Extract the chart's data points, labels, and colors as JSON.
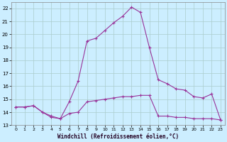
{
  "xlabel": "Windchill (Refroidissement éolien,°C)",
  "bg_color": "#cceeff",
  "grid_color": "#aacccc",
  "line_color": "#993399",
  "xlim": [
    -0.5,
    23.5
  ],
  "ylim": [
    13,
    22.5
  ],
  "yticks": [
    13,
    14,
    15,
    16,
    17,
    18,
    19,
    20,
    21,
    22
  ],
  "xticks": [
    0,
    1,
    2,
    3,
    4,
    5,
    6,
    7,
    8,
    9,
    10,
    11,
    12,
    13,
    14,
    15,
    16,
    17,
    18,
    19,
    20,
    21,
    22,
    23
  ],
  "series1_x": [
    0,
    1,
    2,
    3,
    4,
    5,
    6,
    7,
    8,
    9,
    10,
    11,
    12,
    13,
    14,
    15,
    16,
    17,
    18,
    19,
    20,
    21,
    22,
    23
  ],
  "series1_y": [
    14.4,
    14.4,
    14.5,
    14.0,
    13.7,
    13.5,
    14.8,
    16.4,
    19.5,
    19.7,
    20.3,
    20.9,
    21.4,
    22.1,
    21.7,
    19.0,
    16.5,
    16.2,
    15.8,
    15.7,
    15.2,
    15.1,
    15.4,
    13.4
  ],
  "series2_x": [
    0,
    1,
    2,
    3,
    4,
    5,
    6,
    7,
    8,
    9,
    10,
    11,
    12,
    13,
    14,
    15,
    16,
    17,
    18,
    19,
    20,
    21,
    22,
    23
  ],
  "series2_y": [
    14.4,
    14.4,
    14.5,
    14.0,
    13.6,
    13.5,
    13.9,
    14.0,
    14.8,
    14.9,
    15.0,
    15.1,
    15.2,
    15.2,
    15.3,
    15.3,
    13.7,
    13.7,
    13.6,
    13.6,
    13.5,
    13.5,
    13.5,
    13.4
  ]
}
